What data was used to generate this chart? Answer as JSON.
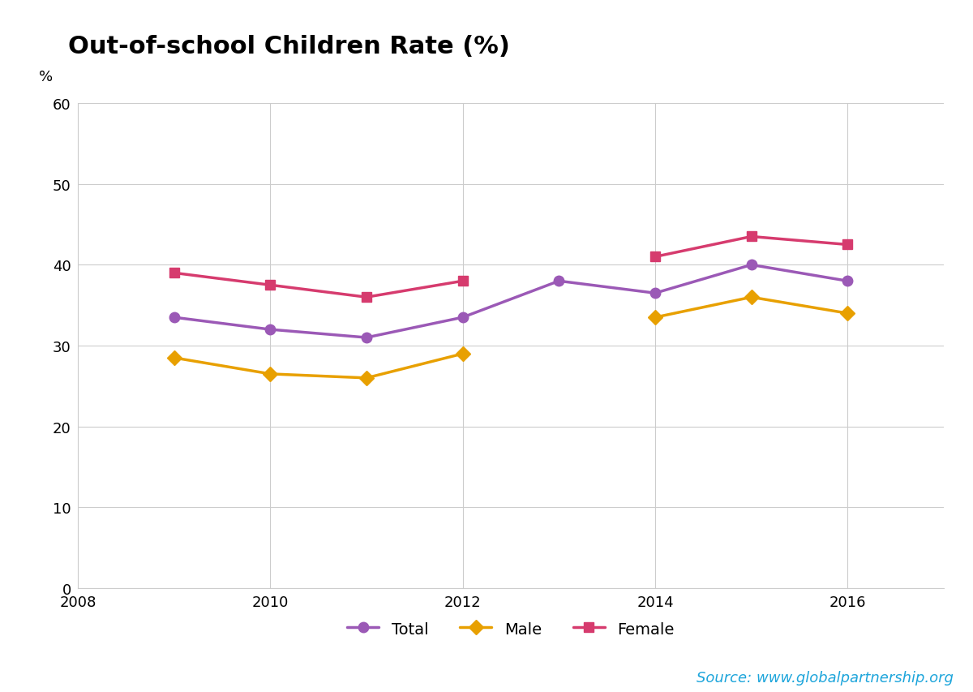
{
  "title": "Out-of-school Children Rate (%)",
  "ylabel": "%",
  "source": "Source: www.globalpartnership.org",
  "years_total": [
    2009,
    2010,
    2011,
    2012,
    2013,
    2014,
    2015,
    2016
  ],
  "total": [
    33.5,
    32.0,
    31.0,
    33.5,
    38.0,
    36.5,
    40.0,
    38.0
  ],
  "years_male": [
    2009,
    2010,
    2011,
    2012,
    2014,
    2015,
    2016
  ],
  "male": [
    28.5,
    26.5,
    26.0,
    29.0,
    33.5,
    36.0,
    34.0
  ],
  "years_female": [
    2009,
    2010,
    2011,
    2012,
    2014,
    2015,
    2016
  ],
  "female": [
    39.0,
    37.5,
    36.0,
    38.0,
    41.0,
    43.5,
    42.5
  ],
  "total_color": "#9B59B6",
  "male_color": "#E8A000",
  "female_color": "#D63B6E",
  "background_color": "#ffffff",
  "grid_color": "#cccccc",
  "xlim": [
    2008,
    2017
  ],
  "ylim": [
    0,
    60
  ],
  "yticks": [
    0,
    10,
    20,
    30,
    40,
    50,
    60
  ],
  "xticks": [
    2008,
    2010,
    2012,
    2014,
    2016
  ],
  "title_fontsize": 22,
  "ylabel_fontsize": 13,
  "tick_fontsize": 13,
  "legend_fontsize": 14,
  "source_fontsize": 13,
  "source_color": "#1da5db",
  "line_width": 2.5,
  "marker_size_circle": 9,
  "marker_size_square": 9,
  "marker_size_diamond": 9
}
